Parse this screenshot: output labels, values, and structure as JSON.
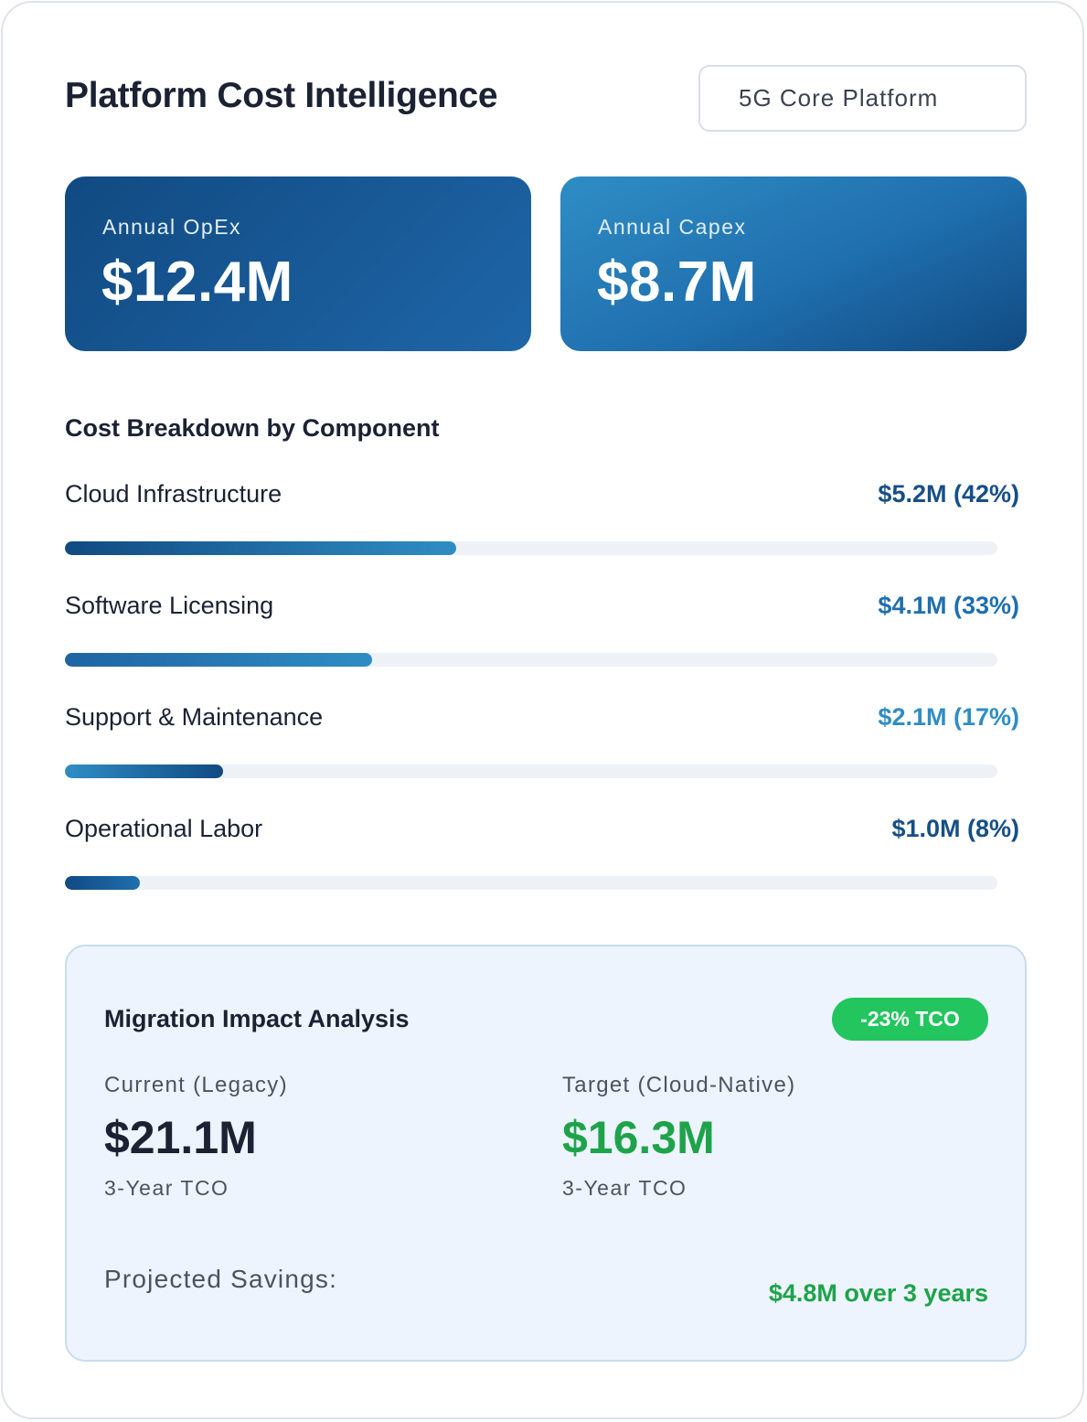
{
  "header": {
    "title": "Platform Cost Intelligence",
    "platform_selector": "5G Core Platform"
  },
  "kpis": {
    "opex": {
      "label": "Annual OpEx",
      "value": "$12.4M"
    },
    "capex": {
      "label": "Annual Capex",
      "value": "$8.7M"
    }
  },
  "breakdown": {
    "title": "Cost Breakdown by Component",
    "items": [
      {
        "label": "Cloud Infrastructure",
        "value": "$5.2M (42%)",
        "share": 42,
        "color": "#174f86"
      },
      {
        "label": "Software Licensing",
        "value": "$4.1M (33%)",
        "share": 33,
        "color": "#1f6fae"
      },
      {
        "label": "Support & Maintenance",
        "value": "$2.1M (17%)",
        "share": 17,
        "color": "#2f8dc4"
      },
      {
        "label": "Operational Labor",
        "value": "$1.0M (8%)",
        "share": 8,
        "color": "#174f86"
      }
    ]
  },
  "migration": {
    "title": "Migration Impact Analysis",
    "badge": "-23% TCO",
    "current": {
      "label": "Current (Legacy)",
      "value": "$21.1M",
      "sub": "3-Year TCO"
    },
    "target": {
      "label": "Target (Cloud-Native)",
      "value": "$16.3M",
      "sub": "3-Year TCO"
    },
    "savings_label": "Projected Savings:",
    "savings_value": "$4.8M over 3 years"
  },
  "colors": {
    "accent_dark": "#114a82",
    "accent_mid": "#1f6fae",
    "accent_light": "#2f8dc4",
    "positive": "#22c55e",
    "positive_text": "#1ea34a"
  }
}
